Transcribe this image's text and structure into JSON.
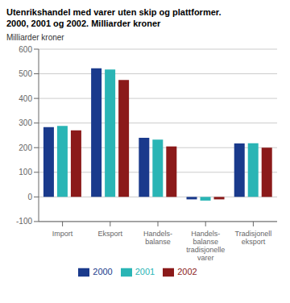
{
  "chart_data": {
    "type": "bar",
    "title": "Utenrikshandel med varer uten skip og plattformer.",
    "subtitle": "2000, 2001 og 2002. Milliarder kroner",
    "ylabel": "Milliarder kroner",
    "categories": [
      "Import",
      "Eksport",
      "Handels-\nbalanse",
      "Handels-\nbalanse\ntradisjonelle\nvarer",
      "Tradisjonell\neksport"
    ],
    "series": [
      {
        "name": "2000",
        "color": "#1a3a8c",
        "values": [
          283,
          522,
          240,
          -10,
          217
        ]
      },
      {
        "name": "2001",
        "color": "#2ab5b5",
        "values": [
          288,
          517,
          233,
          -15,
          218
        ]
      },
      {
        "name": "2002",
        "color": "#8b1a1a",
        "values": [
          270,
          475,
          205,
          -10,
          200
        ]
      }
    ],
    "ylim": [
      -100,
      600
    ],
    "yticks": [
      -100,
      0,
      100,
      200,
      300,
      400,
      500,
      600
    ],
    "grid": true,
    "legend": "bottom"
  }
}
